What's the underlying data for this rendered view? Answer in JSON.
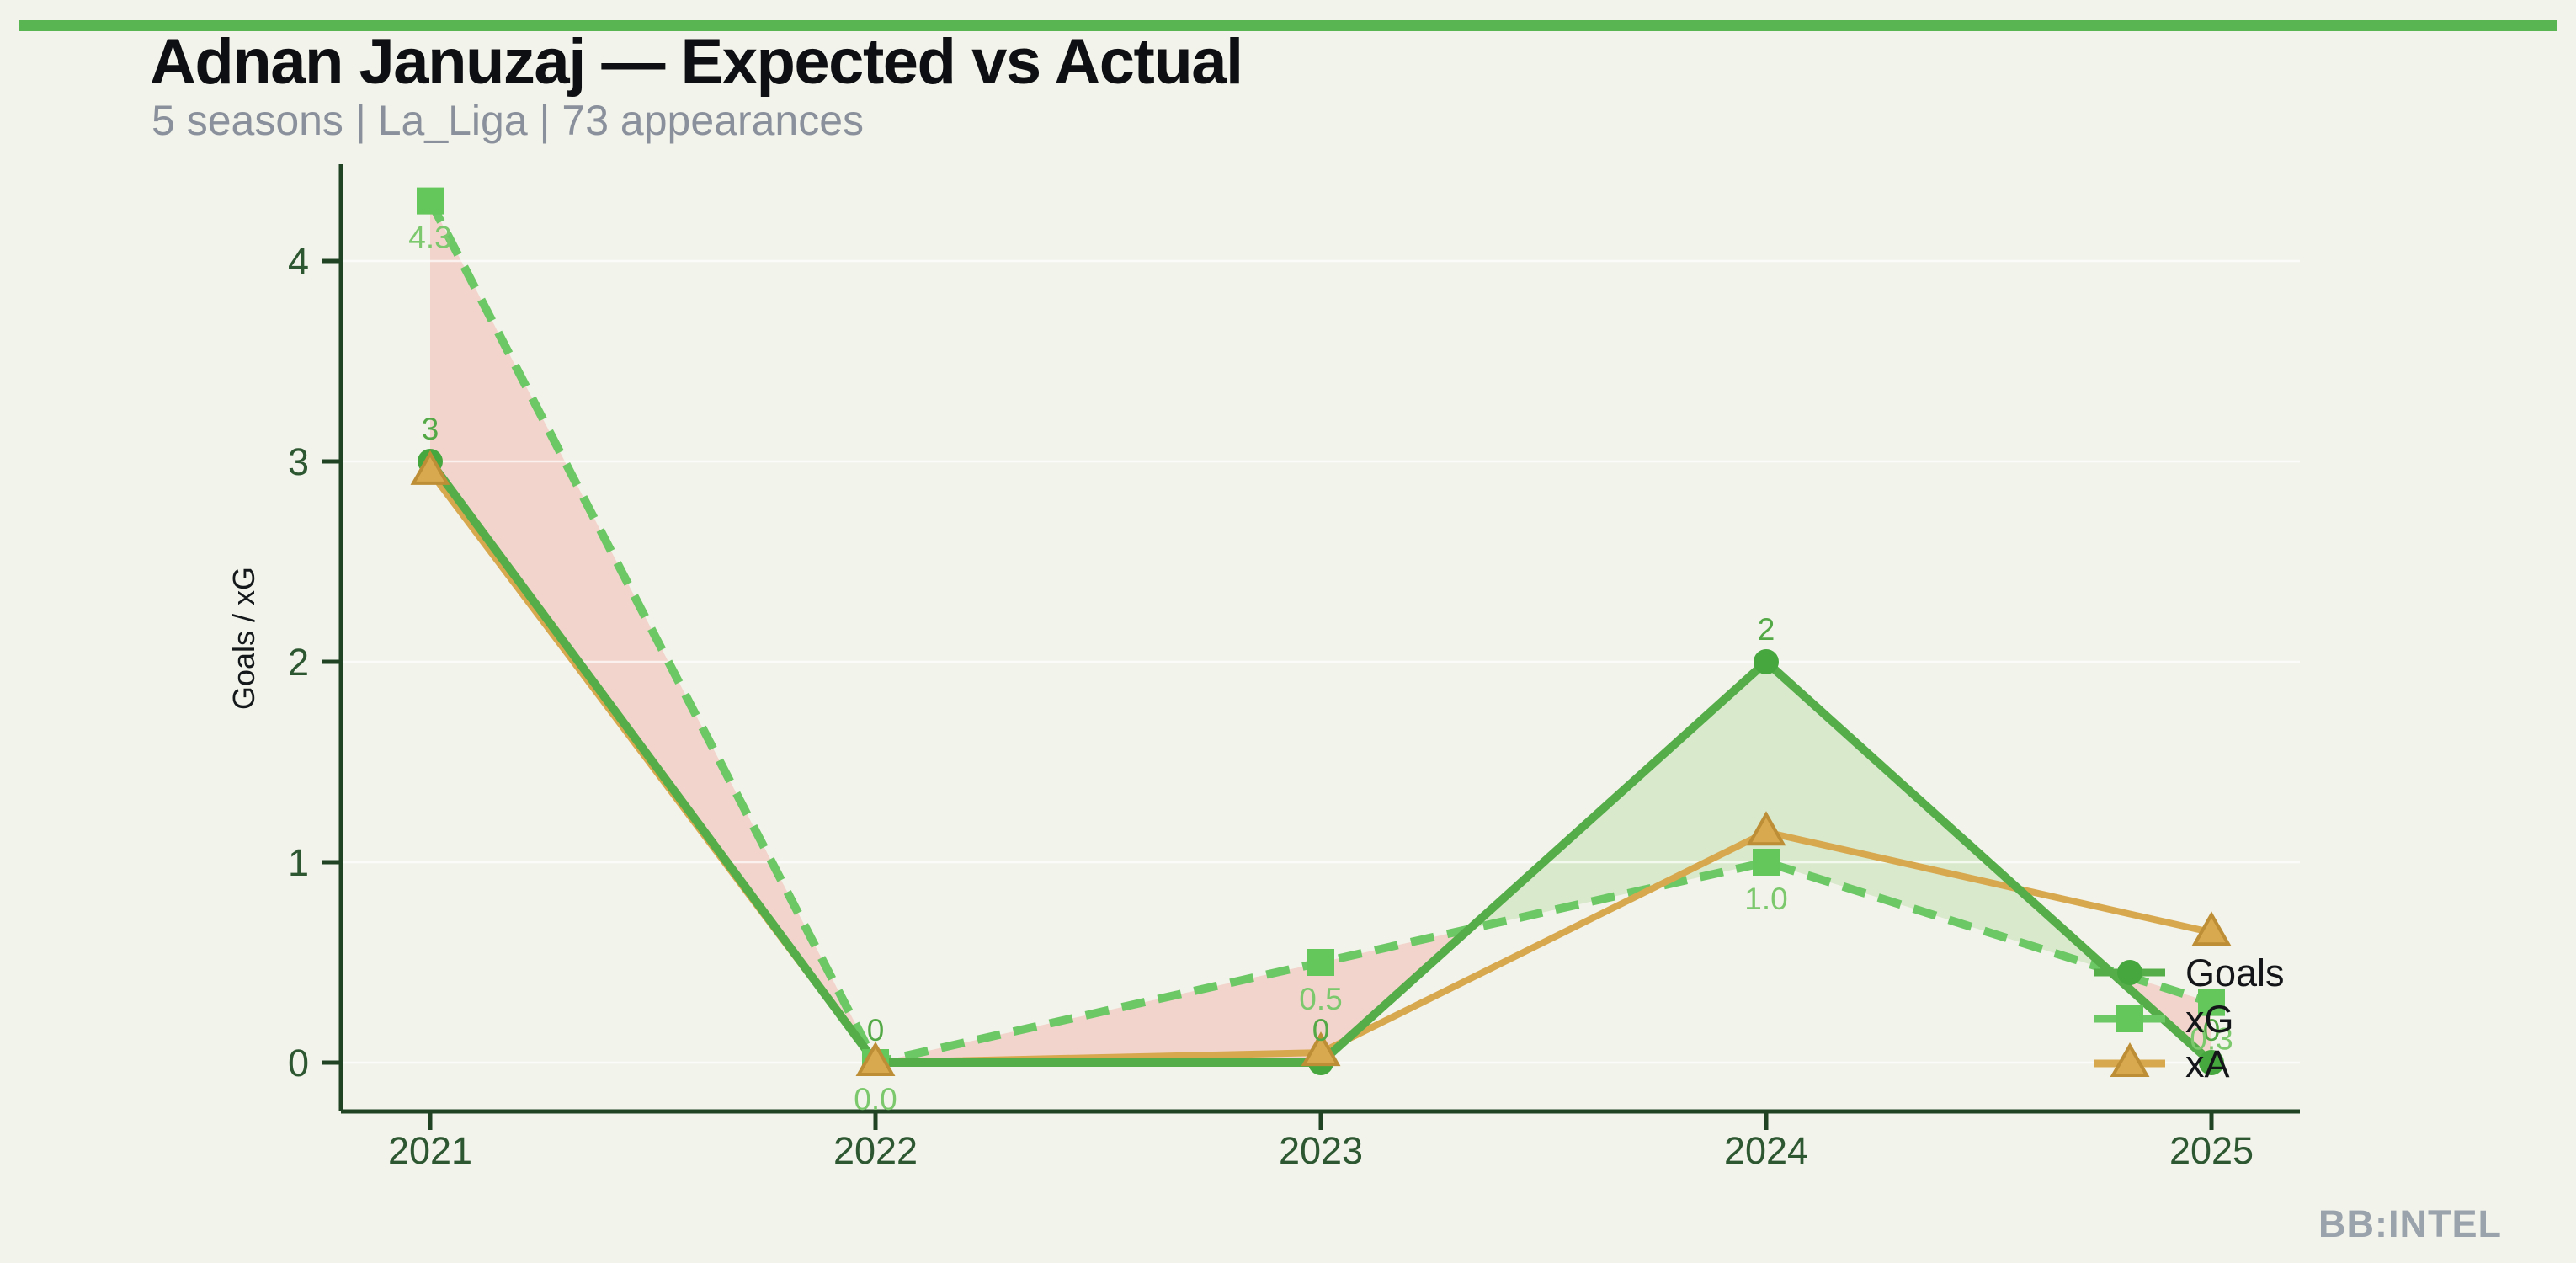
{
  "header": {
    "title": "Adnan Januzaj — Expected vs Actual",
    "subtitle": "5 seasons | La_Liga | 73 appearances"
  },
  "footer": {
    "brand": "BB:INTEL"
  },
  "colors": {
    "background": "#f2f3ea",
    "accent_bar": "#58b551",
    "title": "#0d0f12",
    "subtitle": "#8b919c",
    "brand": "#9aa2ac",
    "axis": "#1f4323",
    "tick_label": "#2d5731",
    "ylabel": "#15181b",
    "legend_text": "#131518",
    "gridline": "rgba(255,255,255,0.7)"
  },
  "chart_data": {
    "type": "line",
    "title": "Adnan Januzaj — Expected vs Actual",
    "subtitle": "5 seasons | La_Liga | 73 appearances",
    "x_categories": [
      "2021",
      "2022",
      "2023",
      "2024",
      "2025"
    ],
    "ylabel": "Goals / xG",
    "yticks": [
      0,
      1,
      2,
      3,
      4
    ],
    "ytick_labels": [
      "0",
      "1",
      "2",
      "3",
      "4"
    ],
    "ylim": [
      0,
      4.5
    ],
    "grid": "faint-horizontal",
    "legend_position": "inside-right",
    "legend_labels": [
      "Goals",
      "xG",
      "xA"
    ],
    "series": [
      {
        "name": "Goals",
        "marker": "circle",
        "line": "solid",
        "color": "#55ad49",
        "marker_color": "#47a73f",
        "label_color": "#54a947",
        "values": [
          3,
          0,
          0,
          2,
          0
        ],
        "point_labels": [
          "3",
          "0",
          "0",
          "2",
          "0"
        ],
        "label_pos": "above"
      },
      {
        "name": "xG",
        "marker": "square",
        "line": "dashed",
        "color": "#6cc765",
        "marker_color": "#63c75b",
        "label_color": "#7cc96d",
        "values": [
          4.3,
          0,
          0.5,
          1,
          0.3
        ],
        "point_labels": [
          "4.3",
          "0.0",
          "0.5",
          "1.0",
          "0.3"
        ],
        "label_pos": "below"
      },
      {
        "name": "xA",
        "marker": "triangle",
        "line": "solid",
        "color": "#d8a84e",
        "marker_color": "#d9a94f",
        "marker_stroke": "#bd8e35",
        "values": [
          2.95,
          0,
          0.05,
          1.15,
          0.65
        ],
        "point_labels": null,
        "label_pos": null
      }
    ],
    "fills": {
      "between": [
        "Goals",
        "xG"
      ],
      "over_color": "rgba(165,210,140,0.32)",
      "under_color": "rgba(244,170,162,0.42)"
    }
  }
}
